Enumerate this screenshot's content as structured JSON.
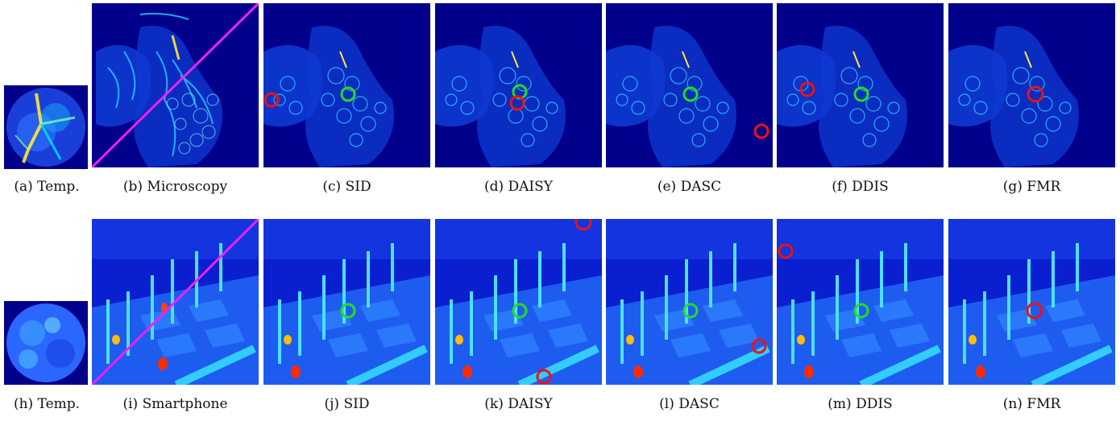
{
  "figure": {
    "rows": [
      {
        "style": "microscopy",
        "panels": [
          {
            "caption": "(a)  Temp.",
            "kind": "template"
          },
          {
            "caption": "(b)  Microscopy",
            "kind": "pair"
          },
          {
            "caption": "(c)  SID",
            "kind": "result"
          },
          {
            "caption": "(d)  DAISY",
            "kind": "result"
          },
          {
            "caption": "(e)  DASC",
            "kind": "result"
          },
          {
            "caption": "(f)  DDIS",
            "kind": "result"
          },
          {
            "caption": "(g)  FMR",
            "kind": "result"
          }
        ]
      },
      {
        "style": "chess",
        "panels": [
          {
            "caption": "(h)  Temp.",
            "kind": "template"
          },
          {
            "caption": "(i)  Smartphone",
            "kind": "pair"
          },
          {
            "caption": "(j)  SID",
            "kind": "result"
          },
          {
            "caption": "(k)  DAISY",
            "kind": "result"
          },
          {
            "caption": "(l)  DASC",
            "kind": "result"
          },
          {
            "caption": "(m)  DDIS",
            "kind": "result"
          },
          {
            "caption": "(n)  FMR",
            "kind": "result"
          }
        ]
      }
    ]
  },
  "colors": {
    "ground_truth": "#22dd22",
    "prediction": "#ee1111",
    "diagonal": "#ee22ee"
  }
}
